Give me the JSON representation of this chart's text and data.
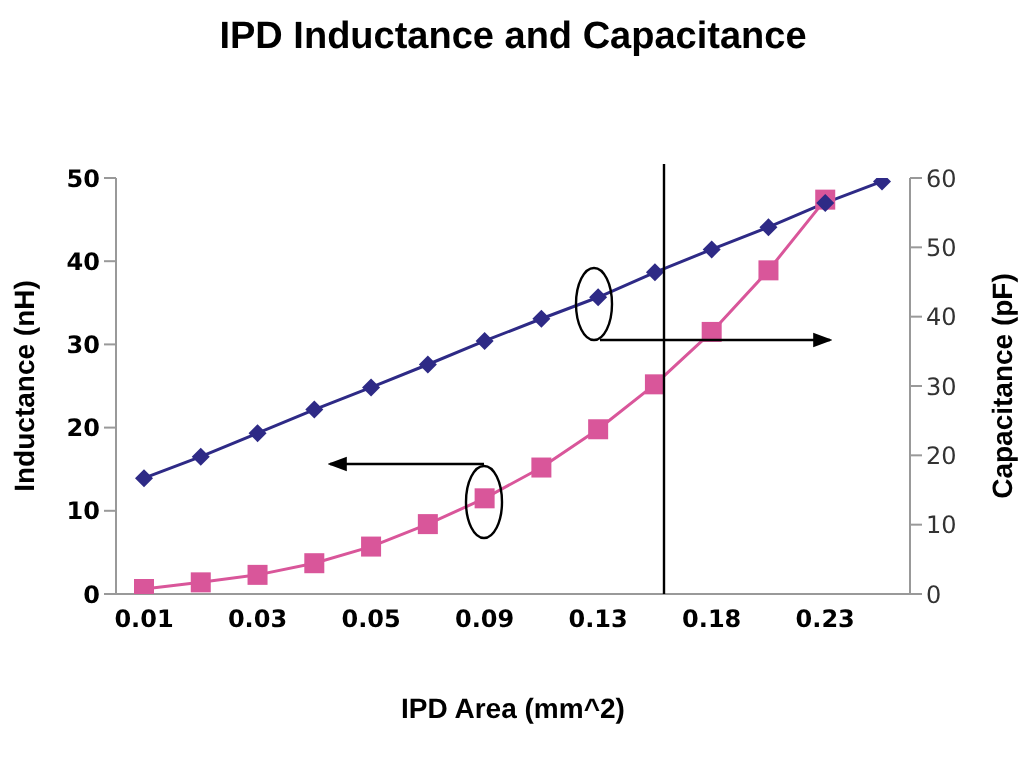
{
  "chart_data": {
    "type": "line",
    "title": "IPD Inductance and Capacitance",
    "xlabel": "IPD Area (mm^2)",
    "ylabel": "Inductance (nH)",
    "y2label": "Capacitance (pF)",
    "categories": [
      "0.01",
      null,
      "0.03",
      null,
      "0.05",
      null,
      "0.09",
      null,
      "0.13",
      null,
      "0.18",
      null,
      "0.23",
      null
    ],
    "series": [
      {
        "color": "#d9569a",
        "marker": "square",
        "values": [
          0.6,
          1.4,
          2.3,
          3.7,
          5.7,
          8.4,
          11.5,
          15.2,
          19.8,
          25.2,
          31.5,
          38.9,
          47.4,
          null
        ]
      },
      {
        "color": "#2e2a86",
        "marker": "diamond",
        "axis": "y2",
        "values": [
          16.7,
          19.8,
          23.2,
          26.6,
          29.8,
          33.1,
          36.5,
          39.7,
          42.8,
          46.4,
          49.7,
          52.9,
          56.4,
          59.5
        ]
      }
    ],
    "ylim": [
      0,
      50
    ],
    "yticks": [
      0,
      10,
      20,
      30,
      40,
      50
    ],
    "y2lim": [
      0,
      60
    ],
    "y2ticks": [
      0,
      10,
      20,
      30,
      40,
      50,
      60
    ],
    "grid": false,
    "legend": false
  }
}
